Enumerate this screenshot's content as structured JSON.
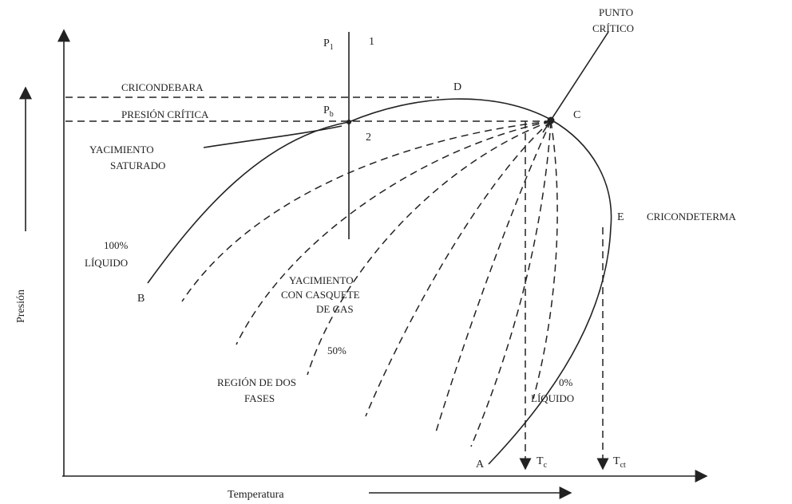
{
  "labels": {
    "punto_critico": [
      "PUNTO",
      "CRÍTICO"
    ],
    "p1": {
      "base": "P",
      "sub": "1"
    },
    "one": "1",
    "cricondebara": "CRICONDEBARA",
    "d": "D",
    "presion_critica": "PRESIÓN CRÍTICA",
    "pb": {
      "base": "P",
      "sub": "b"
    },
    "c": "C",
    "two": "2",
    "yacimiento_saturado": [
      "YACIMIENTO",
      "SATURADO"
    ],
    "e": "E",
    "cricondeterma": "CRICONDETERMA",
    "liquido_100": [
      "100%",
      "LÍQUIDO"
    ],
    "b": "B",
    "yacimiento_casquete": [
      "YACIMIENTO",
      "CON CASQUETE",
      "DE GAS"
    ],
    "p50": "50%",
    "region": [
      "REGIÓN DE DOS",
      "FASES"
    ],
    "liquido_0": [
      "0%",
      "LÍQUIDO"
    ],
    "a": "A",
    "tc": {
      "base": "T",
      "sub": "c"
    },
    "tct": {
      "base": "T",
      "sub": "ct"
    },
    "y_axis": "Presión",
    "x_axis": "Temperatura"
  }
}
